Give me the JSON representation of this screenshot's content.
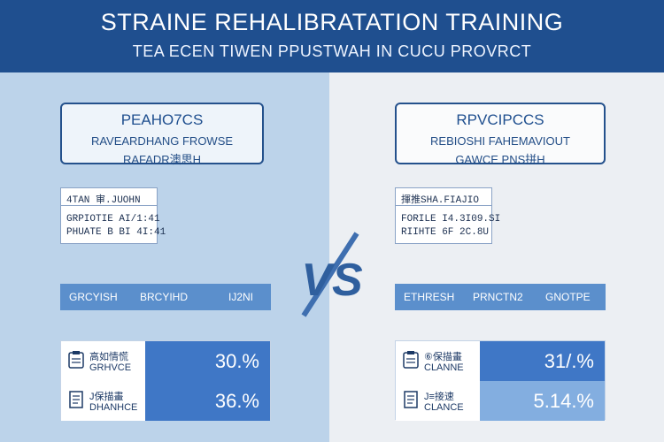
{
  "header": {
    "title": "STRAINE REHALIBRATATION TRAINING",
    "subtitle": "TEA ECEN TIWEN PPUSTWAH  IN  CUCU PROVRCT"
  },
  "left": {
    "card": {
      "line1": "PEAHO7CS",
      "line2": "RAVEARDHANG FROWSE",
      "line3": "RAFADR澳思H"
    },
    "info": {
      "top": "4TAN 审.JUOHN",
      "row1": "GRPIOTIE  AI/1:41",
      "row2": "PHUATE B  BI 4I:41"
    },
    "bar": {
      "col1": "GRCYISH",
      "col2": "BRCYIHD",
      "col3": "IJ2NI"
    },
    "stats": [
      {
        "label1": "高如情慌",
        "label2": "GRHVCE",
        "value": "30.%"
      },
      {
        "label1": "J保描畫",
        "label2": "DHANHCE",
        "value": "36.%"
      }
    ]
  },
  "right": {
    "card": {
      "line1": "RPVCIPCCS",
      "line2": "REBIOSHI FAHEMAVIOUT",
      "line3": "GAWCE PNS拼H"
    },
    "info": {
      "top": "揮推SHA.FIAJIO",
      "row1": "FORILE  I4.3I09.SI",
      "row2": "RIIHTE  6F 2C.8U"
    },
    "bar": {
      "col1": "ETHRESH",
      "col2": "PRNCTN2",
      "col3": "GNOTPE"
    },
    "stats": [
      {
        "label1": "⑥保描畫",
        "label2": "CLANNE",
        "value": "31/.%"
      },
      {
        "label1": "J≡接速",
        "label2": "CLANCE",
        "value": "5.14.%"
      }
    ]
  },
  "vs": {
    "text": "VS",
    "color": "#2f5f9e"
  },
  "colors": {
    "header": "#1f4f8f",
    "leftPanel": "#bcd3ea",
    "rightPanel": "#eceff3",
    "accent": "#3f77c6",
    "accentLight": "#83aee0"
  },
  "icons": {
    "stat1": "clipboard-icon",
    "stat2": "document-icon"
  }
}
